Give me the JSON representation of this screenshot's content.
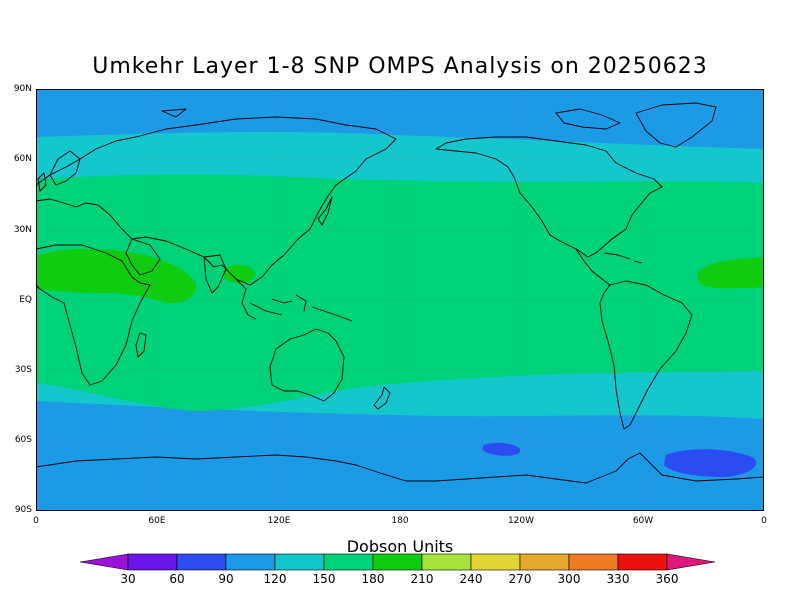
{
  "title": "Umkehr Layer 1-8 SNP OMPS Analysis on 20250623",
  "map": {
    "lat_labels": [
      "90N",
      "60N",
      "30N",
      "EQ",
      "30S",
      "60S",
      "90S"
    ],
    "lon_labels": [
      "0",
      "60E",
      "120E",
      "180",
      "120W",
      "60W",
      "0"
    ],
    "band_colors": {
      "c90": "#1c9ae6",
      "c120": "#13c7cd",
      "c150": "#00d27a",
      "c180": "#10cc10",
      "c60": "#2a4cf0"
    }
  },
  "colorbar": {
    "title": "Dobson Units",
    "levels": [
      "30",
      "60",
      "90",
      "120",
      "150",
      "180",
      "210",
      "240",
      "270",
      "300",
      "330",
      "360"
    ],
    "colors": [
      "#9a12d8",
      "#6a16e8",
      "#2a4cf0",
      "#1c9ae6",
      "#13c7cd",
      "#00d27a",
      "#10cc10",
      "#a6e13c",
      "#e2d534",
      "#e4a82c",
      "#ee7a22",
      "#ee0f0f",
      "#e0177a"
    ]
  }
}
